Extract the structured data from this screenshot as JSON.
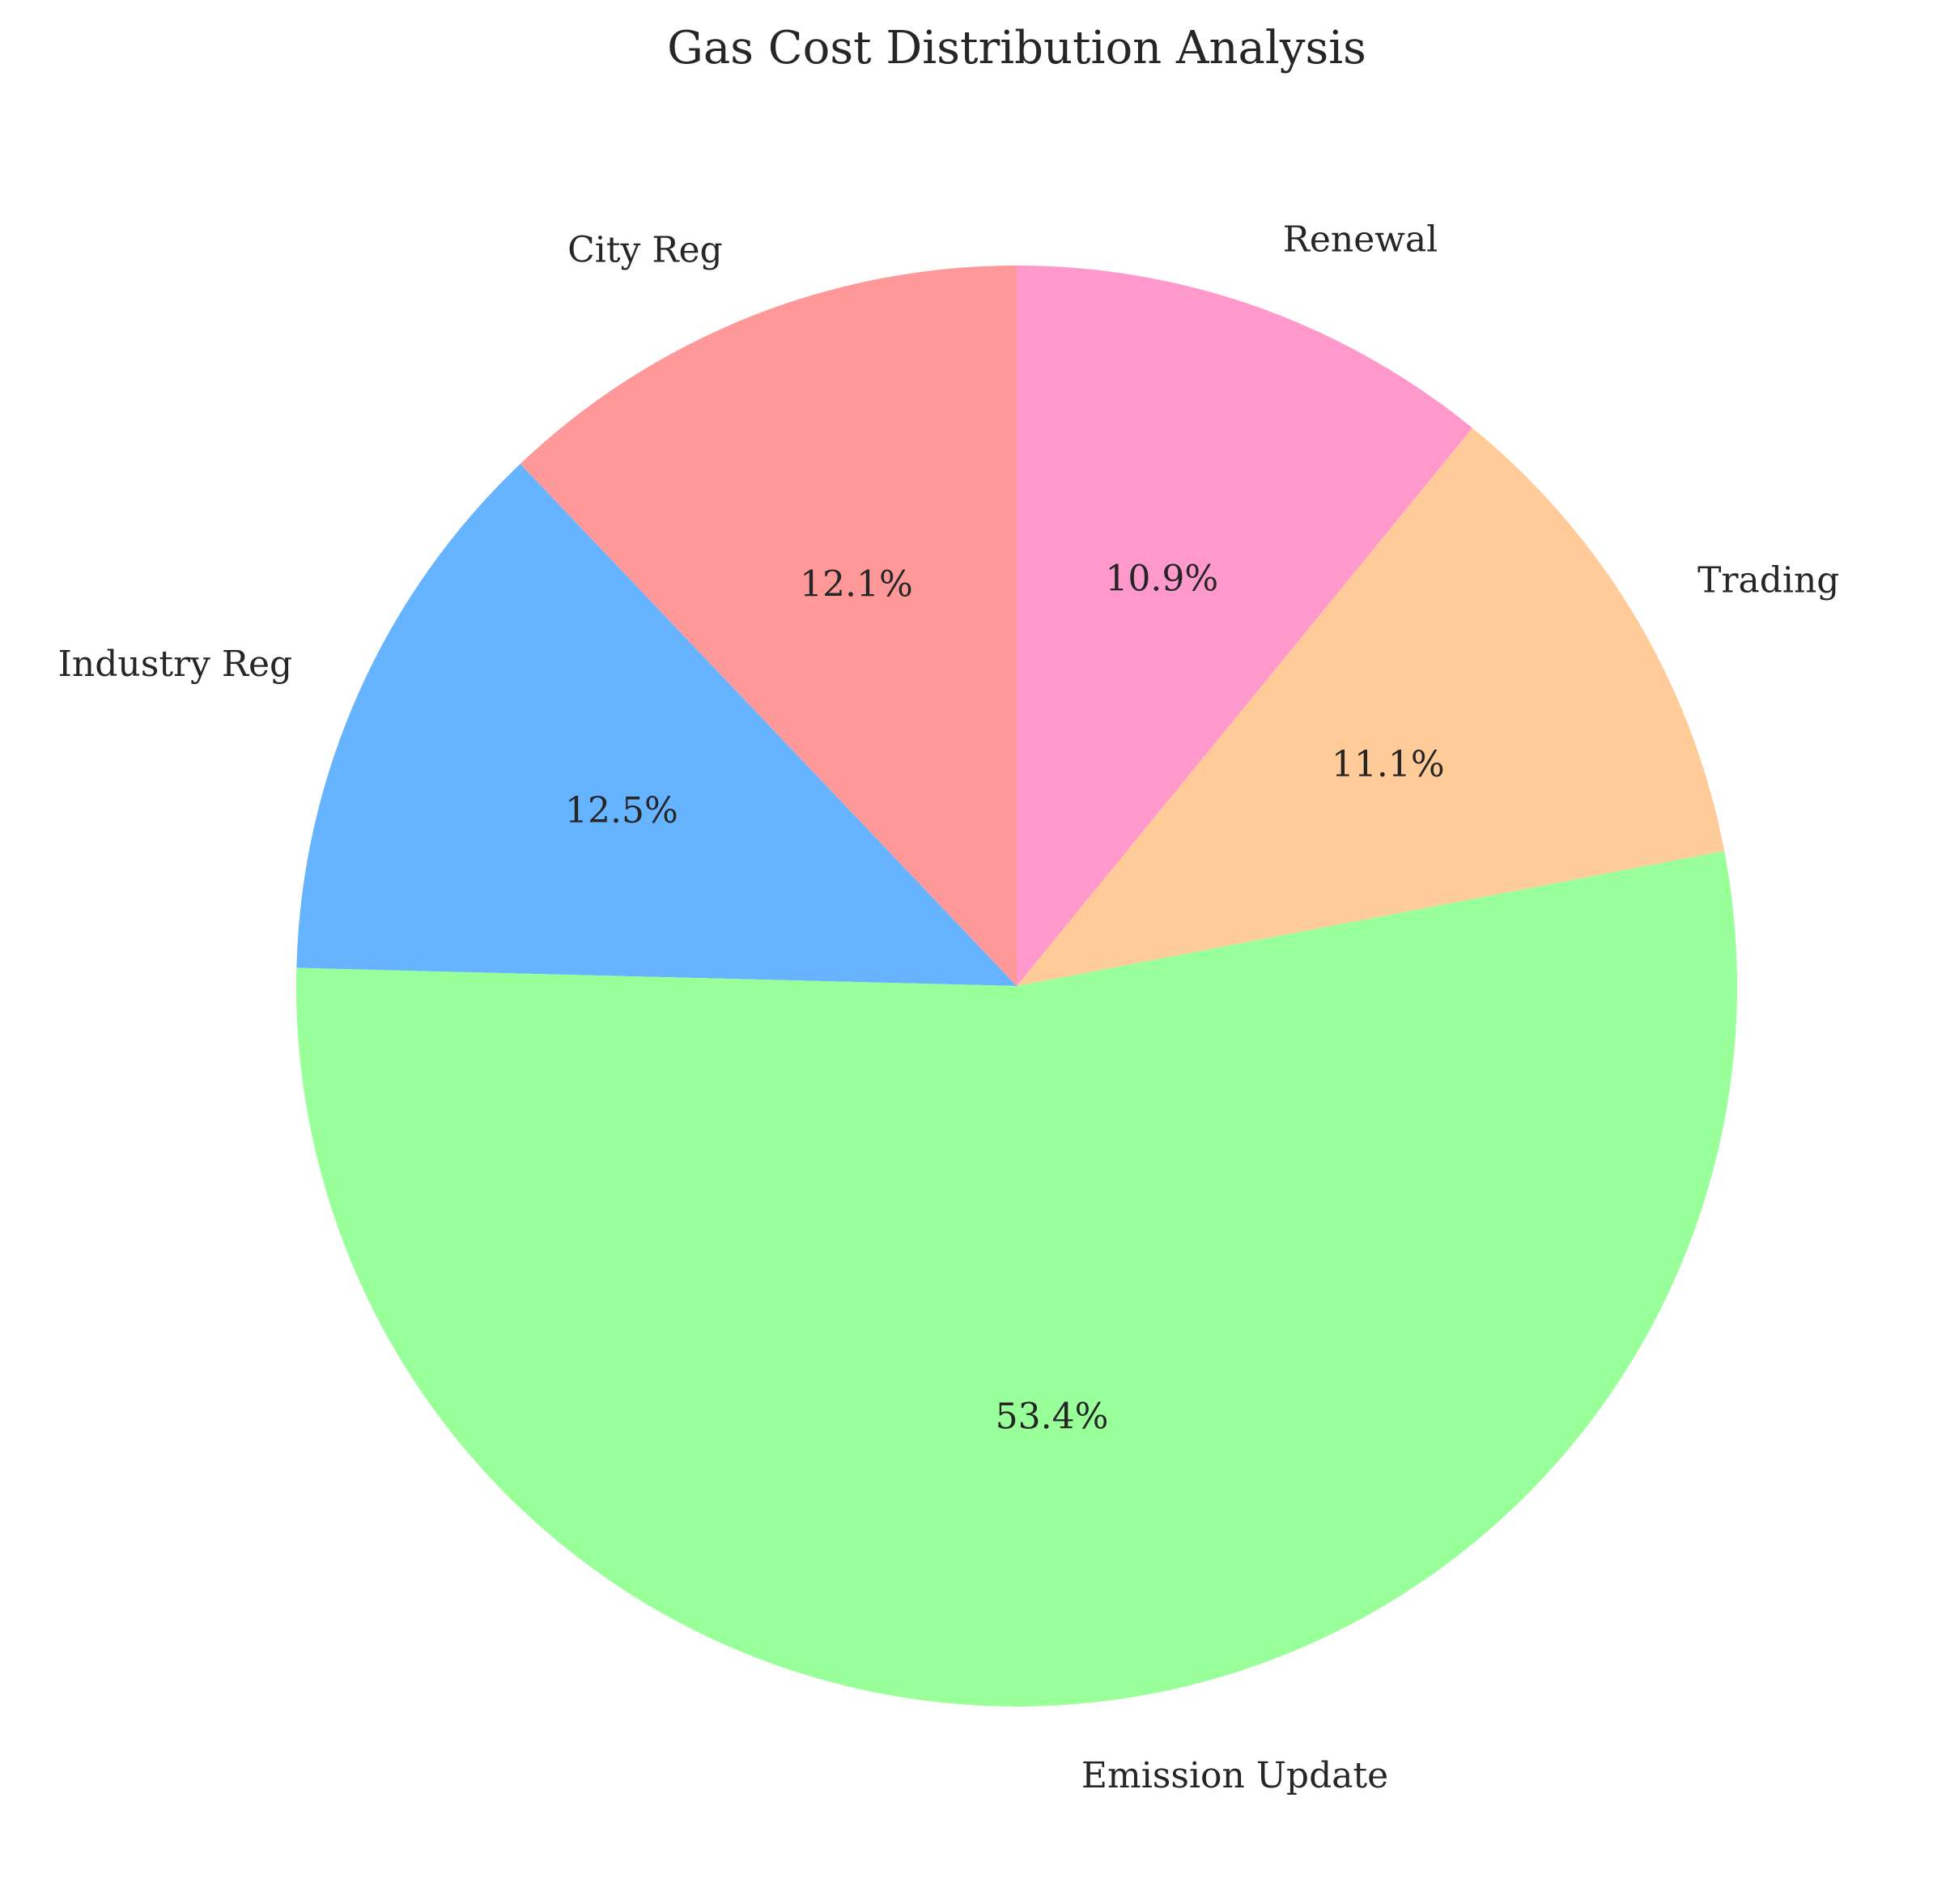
{
  "chart_data": {
    "type": "pie",
    "title": "Gas Cost Distribution Analysis",
    "categories": [
      "City Reg",
      "Industry Reg",
      "Emission Update",
      "Trading",
      "Renewal"
    ],
    "values": [
      12.1,
      12.5,
      53.4,
      11.1,
      10.9
    ],
    "value_labels": [
      "12.1%",
      "12.5%",
      "53.4%",
      "11.1%",
      "10.9%"
    ],
    "colors": [
      "#ff9999",
      "#66b3ff",
      "#99ff99",
      "#ffcc99",
      "#ff99cc"
    ],
    "start_angle_deg": 90,
    "direction": "counterclockwise"
  }
}
